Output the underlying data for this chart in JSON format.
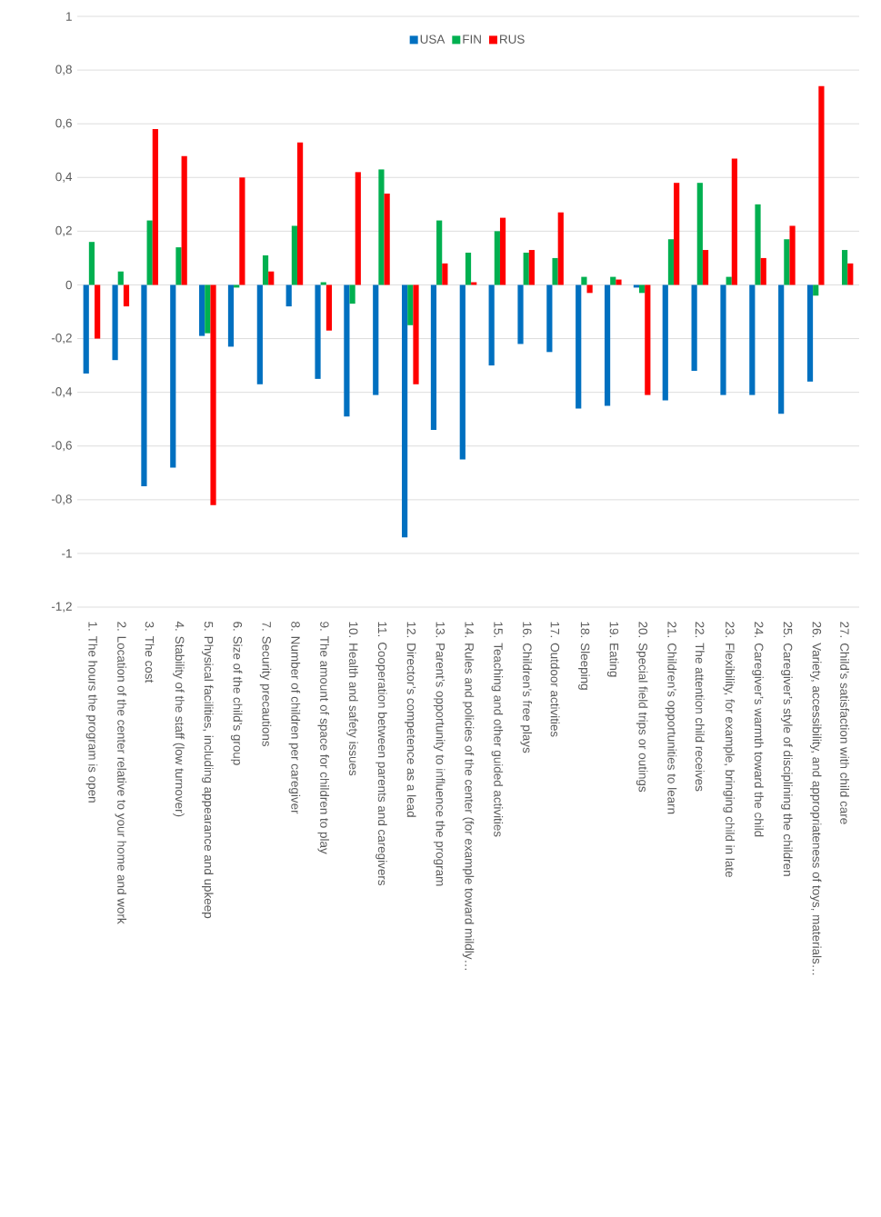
{
  "chart_data": {
    "type": "bar",
    "categories": [
      "1. The hours the program is open",
      "2. Location of the center relative to your home and work",
      "3. The cost",
      "4. Stability of the staff (low turnover)",
      "5. Physical facilities, including appearance and upkeep",
      "6. Size of the child’s group",
      "7. Security precautions",
      "8. Number of children per caregiver",
      "9. The amount of space for children to play",
      "10. Health and safety issues",
      "11. Cooperation between parents and caregivers",
      "12. Director’s competence as a lead",
      "13. Parent’s opportunity to influence the program",
      "14. Rules and policies of the center (for example toward mildly…",
      "15. Teaching and other guided activities",
      "16. Children’s free plays",
      "17. Outdoor activities",
      "18. Sleeping",
      "19. Eating",
      "20. Special field trips or outings",
      "21. Children’s opportunities to learn",
      "22. The attention child receives",
      "23. Flexibility, for example, bringing child in late",
      "24. Caregiver’s warmth toward the child",
      "25. Caregiver’s style of disciplining the children",
      "26. Variety, accessibility, and appropriateness of toys, materials…",
      "27. Child’s satisfaction with child care"
    ],
    "series": [
      {
        "name": "USA",
        "color": "#0070c0",
        "values": [
          -0.33,
          -0.28,
          -0.75,
          -0.68,
          -0.19,
          -0.23,
          -0.37,
          -0.08,
          -0.35,
          -0.49,
          -0.41,
          -0.94,
          -0.54,
          -0.65,
          -0.3,
          -0.22,
          -0.25,
          -0.46,
          -0.45,
          -0.01,
          -0.43,
          -0.32,
          -0.41,
          -0.41,
          -0.48,
          -0.36,
          null
        ]
      },
      {
        "name": "FIN",
        "color": "#00b050",
        "values": [
          0.16,
          0.05,
          0.24,
          0.14,
          -0.18,
          -0.01,
          0.11,
          0.22,
          0.01,
          -0.07,
          0.43,
          -0.15,
          0.24,
          0.12,
          0.2,
          0.12,
          0.1,
          0.03,
          0.03,
          -0.03,
          0.17,
          0.38,
          0.03,
          0.3,
          0.17,
          -0.04,
          0.13
        ]
      },
      {
        "name": "RUS",
        "color": "#ff0000",
        "values": [
          -0.2,
          -0.08,
          0.58,
          0.48,
          -0.82,
          0.4,
          0.05,
          0.53,
          -0.17,
          0.42,
          0.34,
          -0.37,
          0.08,
          0.01,
          0.25,
          0.13,
          0.27,
          -0.03,
          0.02,
          -0.41,
          0.38,
          0.13,
          0.47,
          0.1,
          0.22,
          0.74,
          0.08
        ]
      }
    ],
    "ylim": [
      -1.2,
      1
    ],
    "yticks": [
      {
        "value": -1.2,
        "label": "-1,2"
      },
      -1,
      {
        "value": -0.8,
        "label": "-0,8"
      },
      {
        "value": -0.6,
        "label": "-0,6"
      },
      {
        "value": -0.4,
        "label": "-0,4"
      },
      {
        "value": -0.2,
        "label": "-0,2"
      },
      0,
      {
        "value": 0.2,
        "label": "0,2"
      },
      {
        "value": 0.4,
        "label": "0,4"
      },
      {
        "value": 0.6,
        "label": "0,6"
      },
      {
        "value": 0.8,
        "label": "0,8"
      },
      1
    ],
    "grid": "y",
    "legend": "top"
  }
}
